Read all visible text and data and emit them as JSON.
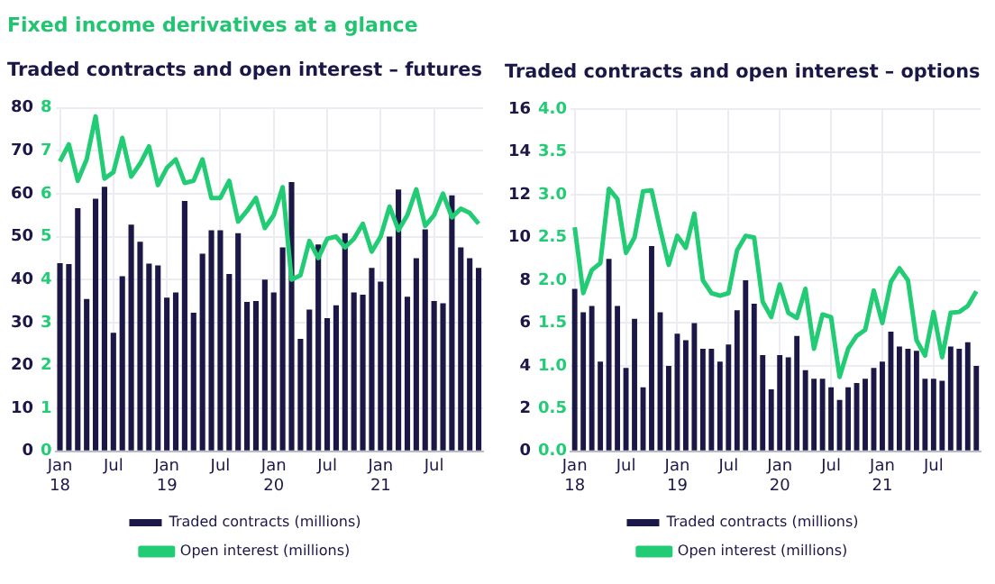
{
  "chart_data": [
    {
      "type": "bar",
      "title": "Fixed income derivatives at a glance",
      "subtitle": "Traded contracts and open interest – futures",
      "categories": [
        "Jan 18",
        null,
        null,
        null,
        null,
        null,
        "Jul",
        null,
        null,
        null,
        null,
        null,
        "Jan 19",
        null,
        null,
        null,
        null,
        null,
        "Jul",
        null,
        null,
        null,
        null,
        null,
        "Jan 20",
        null,
        null,
        null,
        null,
        null,
        "Jul",
        null,
        null,
        null,
        null,
        null,
        "Jan 21",
        null,
        null,
        null,
        null,
        null,
        "Jul",
        null,
        null,
        null,
        null,
        null
      ],
      "series": [
        {
          "name": "Traded contracts (millions)",
          "color": "#1b1747",
          "values": [
            43.8,
            43.6,
            56.6,
            35.5,
            58.8,
            61.6,
            27.6,
            40.8,
            52.8,
            48.8,
            43.7,
            43.3,
            35.8,
            37.0,
            58.3,
            32.3,
            46.0,
            51.5,
            51.5,
            41.3,
            50.8,
            34.8,
            35.0,
            40.0,
            37.0,
            47.5,
            62.7,
            26.2,
            33.0,
            48.2,
            31.0,
            34.0,
            50.8,
            37.0,
            36.5,
            42.7,
            39.5,
            50.0,
            61.0,
            36.0,
            45.0,
            51.7,
            35.0,
            34.5,
            59.6,
            47.5,
            45.0,
            42.7
          ]
        },
        {
          "name": "Open interest (millions)",
          "type": "line",
          "axis": "y2",
          "color": "#22cc74",
          "values": [
            6.75,
            7.15,
            6.3,
            6.8,
            7.8,
            6.35,
            6.5,
            7.3,
            6.4,
            6.7,
            7.1,
            6.2,
            6.6,
            6.8,
            6.25,
            6.3,
            6.8,
            5.9,
            5.9,
            6.3,
            5.35,
            5.6,
            5.9,
            5.2,
            5.5,
            6.15,
            4.0,
            4.1,
            4.9,
            4.5,
            4.95,
            5.0,
            4.75,
            4.95,
            5.3,
            4.65,
            5.0,
            5.7,
            5.15,
            5.5,
            6.1,
            5.25,
            5.5,
            6.0,
            5.45,
            5.65,
            5.55,
            5.3
          ]
        }
      ],
      "ylim": [
        0,
        80
      ],
      "yticks": [
        0,
        10,
        20,
        30,
        40,
        50,
        60,
        70,
        80
      ],
      "y2lim": [
        0,
        8
      ],
      "y2ticks": [
        0,
        1,
        2,
        3,
        4,
        5,
        6,
        7,
        8
      ],
      "grid": true,
      "legend": "bottom",
      "marker": "none"
    },
    {
      "type": "bar",
      "title": "Traded contracts and open interest – options",
      "categories": [
        "Jan 18",
        null,
        null,
        null,
        null,
        null,
        "Jul",
        null,
        null,
        null,
        null,
        null,
        "Jan 19",
        null,
        null,
        null,
        null,
        null,
        "Jul",
        null,
        null,
        null,
        null,
        null,
        "Jan 20",
        null,
        null,
        null,
        null,
        null,
        "Jul",
        null,
        null,
        null,
        null,
        null,
        "Jan 21",
        null,
        null,
        null,
        null,
        null,
        "Jul",
        null,
        null,
        null,
        null,
        null
      ],
      "series": [
        {
          "name": "Traded contracts (millions)",
          "color": "#1b1747",
          "values": [
            7.6,
            6.5,
            6.8,
            4.2,
            9.0,
            6.8,
            3.9,
            6.2,
            3.0,
            9.6,
            6.5,
            4.0,
            5.5,
            5.2,
            6.0,
            4.8,
            4.8,
            4.2,
            5.0,
            6.6,
            8.0,
            6.9,
            4.5,
            2.9,
            4.5,
            4.4,
            5.4,
            3.8,
            3.4,
            3.4,
            3.0,
            2.4,
            3.0,
            3.2,
            3.4,
            3.9,
            4.2,
            5.6,
            4.9,
            4.8,
            4.7,
            3.4,
            3.4,
            3.3,
            4.9,
            4.8,
            5.1,
            4.0
          ]
        },
        {
          "name": "Open interest (millions)",
          "type": "line",
          "axis": "y2",
          "color": "#22cc74",
          "values": [
            2.62,
            1.85,
            2.12,
            2.2,
            3.07,
            2.95,
            2.32,
            2.5,
            3.04,
            3.05,
            2.6,
            2.18,
            2.52,
            2.38,
            2.78,
            2.0,
            1.85,
            1.82,
            1.85,
            2.35,
            2.52,
            2.5,
            1.75,
            1.57,
            1.95,
            1.62,
            1.56,
            1.9,
            1.2,
            1.6,
            1.57,
            0.87,
            1.2,
            1.35,
            1.42,
            1.88,
            1.5,
            1.98,
            2.14,
            2.0,
            1.3,
            1.12,
            1.63,
            1.1,
            1.62,
            1.63,
            1.7,
            1.87
          ]
        }
      ],
      "ylim": [
        0,
        16
      ],
      "yticks": [
        0,
        2,
        4,
        6,
        8,
        10,
        12,
        14,
        16
      ],
      "y2lim": [
        0,
        4
      ],
      "y2ticks": [
        {
          "value": 0,
          "label": "0.0"
        },
        {
          "value": 0.5,
          "label": "0.5"
        },
        {
          "value": 1,
          "label": "1.0"
        },
        {
          "value": 1.5,
          "label": "1.5"
        },
        {
          "value": 2,
          "label": "2.0"
        },
        {
          "value": 2.5,
          "label": "2.5"
        },
        {
          "value": 3,
          "label": "3.0"
        },
        {
          "value": 3.5,
          "label": "3.5"
        },
        {
          "value": 4,
          "label": "4.0"
        }
      ],
      "grid": true,
      "legend": "bottom",
      "marker": "none"
    }
  ]
}
